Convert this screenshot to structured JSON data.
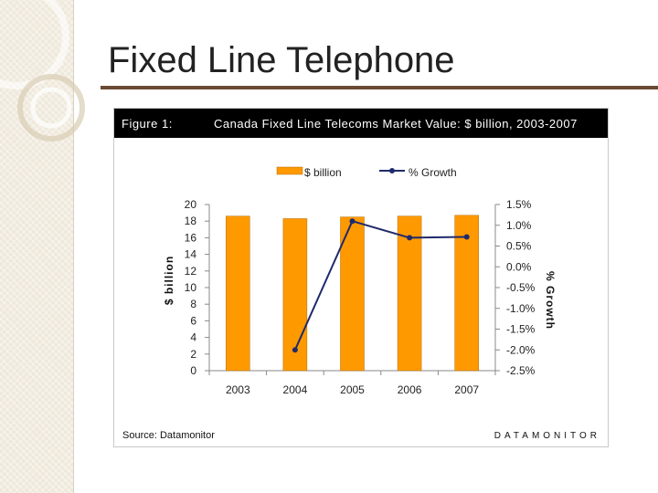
{
  "slide": {
    "title": "Fixed Line Telephone"
  },
  "figure": {
    "label": "Figure 1:",
    "title": "Canada Fixed Line Telecoms Market Value: $ billion, 2003-2007",
    "source": "Source: Datamonitor",
    "brand": "DATAMONITOR"
  },
  "colors": {
    "bar": "#ff9900",
    "bar_outline": "#b36b00",
    "line": "#1f2a6b",
    "title_rule": "#6b4a33",
    "header_bg": "#000000"
  },
  "chart_data": {
    "type": "bar",
    "categories": [
      "2003",
      "2004",
      "2005",
      "2006",
      "2007"
    ],
    "series": [
      {
        "name": "$ billion",
        "type": "bar",
        "axis": "left",
        "values": [
          18.6,
          18.3,
          18.5,
          18.6,
          18.7
        ]
      },
      {
        "name": "% Growth",
        "type": "line",
        "axis": "right",
        "values": [
          null,
          -2.0,
          1.1,
          0.7,
          0.72
        ]
      }
    ],
    "ylabel": "$ billion",
    "y2label": "% Growth",
    "ylim": [
      0,
      20
    ],
    "y2lim": [
      -2.5,
      1.5
    ],
    "yticks": [
      "0",
      "2",
      "4",
      "6",
      "8",
      "10",
      "12",
      "14",
      "16",
      "18",
      "20"
    ],
    "y2ticks": [
      "-2.5%",
      "-2.0%",
      "-1.5%",
      "-1.0%",
      "-0.5%",
      "0.0%",
      "0.5%",
      "1.0%",
      "1.5%"
    ],
    "grid": false,
    "legend_position": "top-center"
  }
}
